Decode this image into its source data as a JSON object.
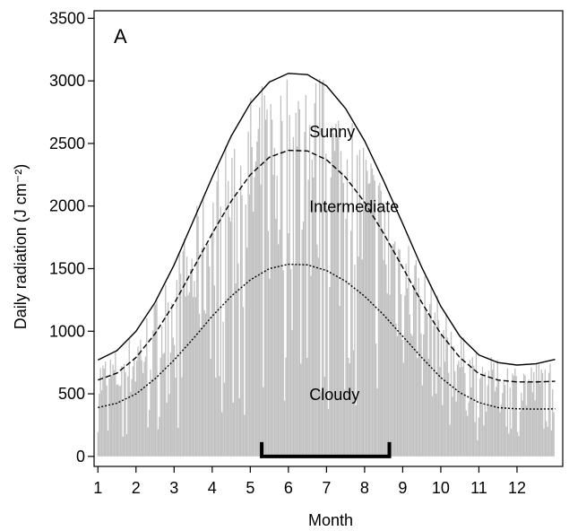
{
  "chart_data": {
    "type": "bar",
    "panel_label": "A",
    "xlabel": "Month",
    "ylabel": "Daily radiation (J cm⁻²)",
    "xlim": [
      0.9,
      13.2
    ],
    "ylim": [
      -80,
      3560
    ],
    "x_ticks": [
      1,
      2,
      3,
      4,
      5,
      6,
      7,
      8,
      9,
      10,
      11,
      12
    ],
    "y_ticks": [
      0,
      500,
      1000,
      1500,
      2000,
      2500,
      3000,
      3500
    ],
    "grid": false,
    "bar_color": "#c0c0c0",
    "daily_radiation": {
      "description_free_note": "",
      "day_start_month": 1.0,
      "days": 365,
      "monthly_max_estimates": [
        {
          "month": 1,
          "value": 760
        },
        {
          "month": 2,
          "value": 1000
        },
        {
          "month": 3,
          "value": 1650
        },
        {
          "month": 4,
          "value": 2350
        },
        {
          "month": 5,
          "value": 2900
        },
        {
          "month": 6,
          "value": 3100
        },
        {
          "month": 7,
          "value": 3080
        },
        {
          "month": 8,
          "value": 2700
        },
        {
          "month": 9,
          "value": 2100
        },
        {
          "month": 10,
          "value": 1400
        },
        {
          "month": 11,
          "value": 900
        },
        {
          "month": 12,
          "value": 720
        }
      ]
    },
    "series": [
      {
        "name": "Sunny",
        "style": "solid",
        "x": [
          1.0,
          1.5,
          2.0,
          2.5,
          3.0,
          3.5,
          4.0,
          4.5,
          5.0,
          5.5,
          6.0,
          6.5,
          7.0,
          7.5,
          8.0,
          8.5,
          9.0,
          9.5,
          10.0,
          10.5,
          11.0,
          11.5,
          12.0,
          12.5,
          13.0
        ],
        "values": [
          770,
          845,
          1000,
          1230,
          1530,
          1880,
          2230,
          2560,
          2820,
          2990,
          3060,
          3050,
          2960,
          2780,
          2520,
          2200,
          1860,
          1510,
          1200,
          960,
          810,
          750,
          730,
          740,
          775
        ]
      },
      {
        "name": "Intermediate",
        "style": "dashed",
        "x": [
          1.0,
          1.5,
          2.0,
          2.5,
          3.0,
          3.5,
          4.0,
          4.5,
          5.0,
          5.5,
          6.0,
          6.5,
          7.0,
          7.5,
          8.0,
          8.5,
          9.0,
          9.5,
          10.0,
          10.5,
          11.0,
          11.5,
          12.0,
          12.5,
          13.0
        ],
        "values": [
          610,
          665,
          790,
          980,
          1220,
          1500,
          1780,
          2040,
          2250,
          2390,
          2445,
          2440,
          2370,
          2230,
          2030,
          1780,
          1510,
          1230,
          980,
          790,
          660,
          610,
          595,
          595,
          600
        ]
      },
      {
        "name": "Cloudy",
        "style": "dotted",
        "x": [
          1.0,
          1.5,
          2.0,
          2.5,
          3.0,
          3.5,
          4.0,
          4.5,
          5.0,
          5.5,
          6.0,
          6.5,
          7.0,
          7.5,
          8.0,
          8.5,
          9.0,
          9.5,
          10.0,
          10.5,
          11.0,
          11.5,
          12.0,
          12.5,
          13.0
        ],
        "values": [
          390,
          425,
          500,
          620,
          770,
          940,
          1120,
          1280,
          1410,
          1500,
          1535,
          1530,
          1485,
          1400,
          1280,
          1130,
          960,
          790,
          630,
          510,
          430,
          390,
          380,
          378,
          380
        ]
      }
    ],
    "bracket": {
      "x_start": 5.3,
      "x_end": 8.65,
      "y": 0
    }
  }
}
